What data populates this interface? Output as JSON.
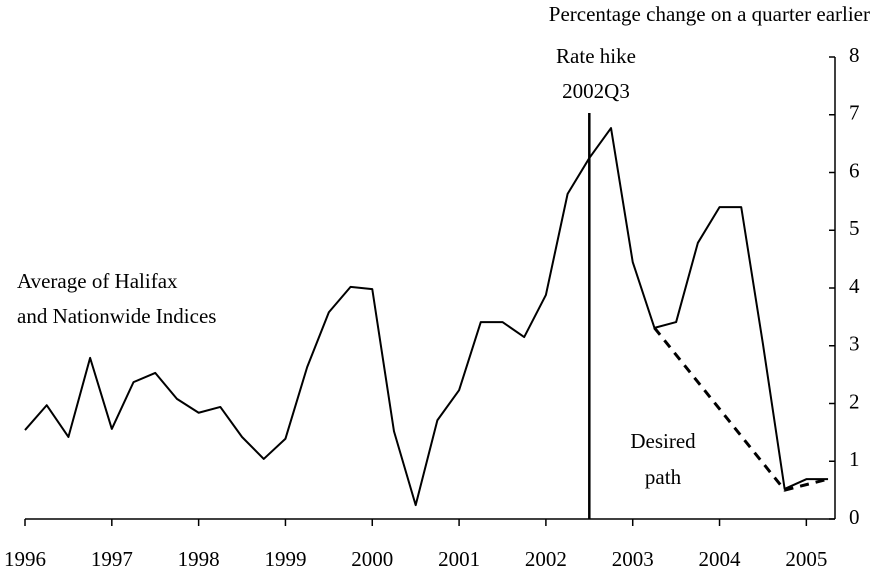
{
  "chart_data": {
    "type": "line",
    "y_title": "Percentage change on a quarter earlier",
    "x": [
      1996,
      1996.25,
      1996.5,
      1996.75,
      1997,
      1997.25,
      1997.5,
      1997.75,
      1998,
      1998.25,
      1998.5,
      1998.75,
      1999,
      1999.25,
      1999.5,
      1999.75,
      2000,
      2000.25,
      2000.5,
      2000.75,
      2001,
      2001.25,
      2001.5,
      2001.75,
      2002,
      2002.25,
      2002.5,
      2002.75,
      2003,
      2003.25,
      2003.5,
      2003.75,
      2004,
      2004.25,
      2004.5,
      2004.75,
      2005,
      2005.25
    ],
    "series": [
      {
        "color": "#000000",
        "style": "solid",
        "values": [
          1.54,
          1.97,
          1.42,
          2.79,
          1.56,
          2.37,
          2.53,
          2.08,
          1.84,
          1.94,
          1.42,
          1.04,
          1.39,
          2.63,
          3.58,
          4.02,
          3.98,
          1.52,
          0.24,
          1.71,
          2.23,
          3.41,
          3.41,
          3.15,
          3.88,
          5.63,
          6.25,
          6.77,
          4.45,
          3.31,
          3.41,
          4.78,
          5.4,
          5.4,
          3.03,
          0.52,
          0.69,
          0.69
        ]
      },
      {
        "color": "#000000",
        "style": "dashed",
        "x": [
          2003.25,
          2004.75,
          2005.25
        ],
        "values": [
          3.31,
          0.5,
          0.69
        ]
      }
    ],
    "xlim": [
      1996,
      2005.33
    ],
    "xticks": [
      1996,
      1997,
      1998,
      1999,
      2000,
      2001,
      2002,
      2003,
      2004,
      2005
    ],
    "ylim": [
      0,
      8
    ],
    "yticks": [
      0,
      1,
      2,
      3,
      4,
      5,
      6,
      7,
      8
    ],
    "y_axis_side": "right",
    "grid": false,
    "annotations": [
      {
        "x": 2002.5,
        "text": [
          "Rate hike",
          "2002Q3"
        ]
      },
      {
        "text": [
          "Average of Halifax",
          "and Nationwide Indices"
        ]
      },
      {
        "text": [
          "Desired",
          "path"
        ]
      }
    ]
  }
}
